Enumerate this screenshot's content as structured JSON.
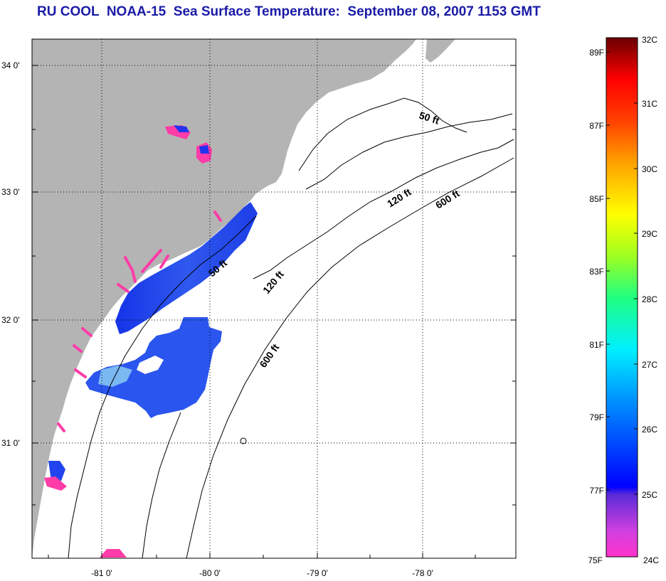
{
  "title": "RU COOL  NOAA-15  Sea Surface Temperature:  September 08, 2007 1153 GMT",
  "latitude_labels": [
    "34 0'",
    "33 0'",
    "32 0'",
    "31 0'"
  ],
  "longitude_labels": [
    "-81 0'",
    "-80 0'",
    "-79 0'",
    "-78 0'"
  ],
  "depth_labels": {
    "d50a": "50 ft",
    "d120a": "120 ft",
    "d600a": "600 ft",
    "d50b": "50 ft",
    "d120b": "120 ft",
    "d600b": "600 ft"
  },
  "colorbar": {
    "fahrenheit": [
      "89F",
      "87F",
      "85F",
      "83F",
      "81F",
      "79F",
      "77F",
      "75F"
    ],
    "celsius": [
      "32C",
      "31C",
      "30C",
      "29C",
      "28C",
      "27C",
      "26C",
      "25C",
      "24C"
    ]
  },
  "colors": {
    "title": "#1a1aa6",
    "land": "#b4b4b4",
    "ocean": "#ffffff",
    "sst_cold": "#ff2ea8",
    "sst_blue": "#2244ee"
  }
}
